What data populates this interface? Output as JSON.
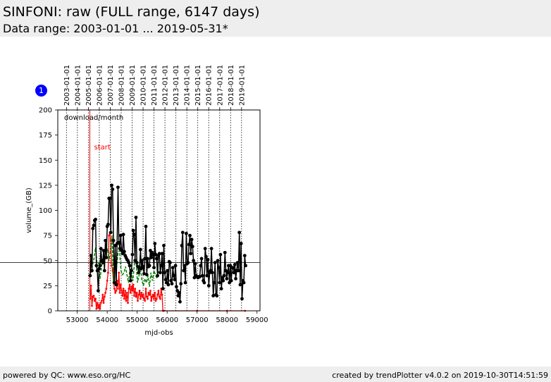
{
  "header": {
    "title": "SINFONI: raw (FULL range, 6147 days)",
    "subtitle": "Data range: 2003-01-01 ... 2019-05-31*"
  },
  "badge": {
    "label": "1"
  },
  "footer": {
    "left": "powered by QC: www.eso.org/HC",
    "right": "created by trendPlotter v4.0.2 on 2019-10-30T14:51:59"
  },
  "colors": {
    "total": "#000000",
    "green": "#008000",
    "red": "#ff0000",
    "header_bg": "#eeeeee",
    "badge": "#0000ff"
  },
  "chart_data": {
    "type": "line",
    "xlabel": "mjd-obs",
    "ylabel": "volume_(GB)",
    "xlim": [
      52350,
      59100
    ],
    "ylim": [
      0,
      200
    ],
    "xticks": [
      53000,
      54000,
      55000,
      56000,
      57000,
      58000,
      59000
    ],
    "yticks": [
      0,
      25,
      50,
      75,
      100,
      125,
      150,
      175,
      200
    ],
    "top_axis_dates": [
      "2003-01-01",
      "2004-01-01",
      "2005-01-01",
      "2006-01-01",
      "2007-01-01",
      "2008-01-01",
      "2009-01-01",
      "2010-01-01",
      "2011-01-01",
      "2012-01-01",
      "2013-01-01",
      "2014-01-01",
      "2015-01-01",
      "2016-01-01",
      "2017-01-01",
      "2018-01-01",
      "2019-01-01"
    ],
    "top_axis_mjd": [
      52640,
      53005,
      53371,
      53736,
      54101,
      54466,
      54832,
      55197,
      55562,
      55927,
      56293,
      56658,
      57023,
      57388,
      57754,
      58119,
      58484
    ],
    "annotations": {
      "box_label": "download/month",
      "start_label": "start",
      "start_mjd": 53420
    },
    "reference_line": 48,
    "series": [
      {
        "name": "total",
        "x": [
          53430,
          53460,
          53490,
          53520,
          53550,
          53580,
          53610,
          53640,
          53670,
          53700,
          53730,
          53760,
          53790,
          53820,
          53850,
          53880,
          53910,
          53940,
          53970,
          54000,
          54030,
          54060,
          54090,
          54120,
          54150,
          54180,
          54210,
          54240,
          54270,
          54300,
          54330,
          54360,
          54390,
          54420,
          54450,
          54480,
          54510,
          54540,
          54570,
          54600,
          54630,
          54660,
          54690,
          54720,
          54750,
          54780,
          54810,
          54840,
          54870,
          54900,
          54930,
          54960,
          54990,
          55020,
          55050,
          55080,
          55110,
          55140,
          55170,
          55200,
          55230,
          55260,
          55290,
          55320,
          55350,
          55380,
          55410,
          55440,
          55470,
          55500,
          55530,
          55560,
          55590,
          55620,
          55650,
          55680,
          55710,
          55740,
          55770,
          55800,
          55830,
          55860,
          55890,
          55920,
          55950,
          55980,
          56010,
          56040,
          56070,
          56100,
          56130,
          56160,
          56190,
          56220,
          56250,
          56280,
          56310,
          56340,
          56370,
          56400,
          56430,
          56460,
          56490,
          56520,
          56550,
          56580,
          56610,
          56640,
          56670,
          56700,
          56730,
          56760,
          56790,
          56820,
          56850,
          56880,
          56910,
          56940,
          56970,
          57000,
          57030,
          57060,
          57090,
          57120,
          57150,
          57180,
          57210,
          57240,
          57270,
          57300,
          57330,
          57360,
          57390,
          57420,
          57450,
          57480,
          57510,
          57540,
          57570,
          57600,
          57630,
          57660,
          57690,
          57720,
          57750,
          57780,
          57810,
          57840,
          57870,
          57900,
          57930,
          57960,
          57990,
          58020,
          58050,
          58080,
          58110,
          58140,
          58170,
          58200,
          58230,
          58260,
          58290,
          58320,
          58350,
          58380,
          58410,
          58440,
          58470,
          58500,
          58530,
          58560,
          58590,
          58620
        ],
        "values": [
          35,
          55,
          40,
          82,
          85,
          90,
          91,
          45,
          40,
          20,
          42,
          45,
          62,
          50,
          48,
          60,
          40,
          70,
          53,
          84,
          86,
          112,
          112,
          78,
          125,
          121,
          70,
          28,
          65,
          26,
          67,
          123,
          68,
          62,
          75,
          60,
          57,
          76,
          59,
          55,
          53,
          51,
          50,
          48,
          45,
          30,
          40,
          56,
          80,
          76,
          50,
          93,
          48,
          44,
          38,
          43,
          61,
          42,
          50,
          44,
          37,
          52,
          84,
          36,
          52,
          44,
          45,
          60,
          53,
          58,
          56,
          43,
          67,
          56,
          52,
          35,
          55,
          57,
          38,
          45,
          57,
          22,
          65,
          38,
          31,
          28,
          40,
          26,
          49,
          48,
          30,
          27,
          43,
          35,
          31,
          45,
          24,
          20,
          15,
          18,
          9,
          27,
          65,
          78,
          40,
          45,
          28,
          77,
          47,
          48,
          66,
          75,
          57,
          71,
          64,
          50,
          33,
          47,
          35,
          34,
          33,
          34,
          34,
          45,
          52,
          35,
          30,
          28,
          62,
          54,
          35,
          51,
          25,
          38,
          40,
          62,
          38,
          15,
          28,
          48,
          16,
          15,
          50,
          43,
          28,
          56,
          22,
          33,
          30,
          35,
          58,
          40,
          32,
          38,
          45,
          28,
          45,
          30,
          43,
          43,
          38,
          46,
          32,
          40,
          48,
          40,
          78,
          26,
          67,
          12,
          30,
          28,
          55,
          45
        ]
      },
      {
        "name": "green",
        "x": [
          53460,
          53510,
          53560,
          53610,
          53660,
          53710,
          53760,
          53810,
          53860,
          53910,
          53960,
          54010,
          54060,
          54110,
          54160,
          54210,
          54260,
          54310,
          54360,
          54410,
          54460,
          54510,
          54560,
          54610,
          54660,
          54710,
          54760,
          54810,
          54860,
          54910,
          54960,
          55010,
          55060,
          55110,
          55160,
          55210,
          55260,
          55310,
          55360,
          55410,
          55460,
          55510,
          55560,
          55610,
          55660,
          55710,
          55760
        ],
        "values": [
          38,
          45,
          52,
          63,
          47,
          48,
          32,
          44,
          52,
          55,
          56,
          62,
          50,
          60,
          75,
          28,
          46,
          42,
          58,
          60,
          40,
          36,
          38,
          44,
          36,
          28,
          42,
          36,
          30,
          48,
          50,
          28,
          35,
          42,
          30,
          25,
          32,
          28,
          35,
          24,
          38,
          30,
          40,
          36,
          32,
          40,
          38
        ]
      },
      {
        "name": "red",
        "x": [
          53430,
          53460,
          53490,
          53520,
          53550,
          53580,
          53610,
          53640,
          53670,
          53700,
          53730,
          53760,
          53790,
          53820,
          53850,
          53880,
          53910,
          53940,
          53970,
          54000,
          54030,
          54060,
          54090,
          54120,
          54150,
          54180,
          54210,
          54240,
          54270,
          54300,
          54330,
          54360,
          54390,
          54420,
          54450,
          54480,
          54510,
          54540,
          54570,
          54600,
          54630,
          54660,
          54690,
          54720,
          54750,
          54780,
          54810,
          54840,
          54870,
          54900,
          54930,
          54960,
          54990,
          55020,
          55050,
          55080,
          55110,
          55140,
          55170,
          55200,
          55230,
          55260,
          55290,
          55320,
          55350,
          55380,
          55410,
          55440,
          55470,
          55500,
          55530,
          55560,
          55590,
          55620,
          55650,
          55680,
          55710,
          55740,
          55770,
          55800,
          55830,
          55860,
          55890,
          57000,
          58000,
          58600
        ],
        "values": [
          12,
          25,
          5,
          14,
          15,
          10,
          12,
          2,
          8,
          3,
          6,
          2,
          8,
          10,
          16,
          8,
          14,
          18,
          22,
          30,
          38,
          75,
          78,
          70,
          45,
          40,
          28,
          22,
          18,
          20,
          30,
          22,
          38,
          18,
          26,
          20,
          15,
          22,
          12,
          20,
          10,
          18,
          8,
          22,
          26,
          18,
          24,
          20,
          26,
          15,
          22,
          14,
          18,
          10,
          16,
          20,
          12,
          18,
          14,
          16,
          12,
          10,
          22,
          14,
          12,
          18,
          16,
          20,
          10,
          14,
          16,
          12,
          18,
          10,
          12,
          16,
          20,
          14,
          12,
          22,
          16,
          0,
          0,
          0,
          0,
          0
        ]
      }
    ]
  }
}
